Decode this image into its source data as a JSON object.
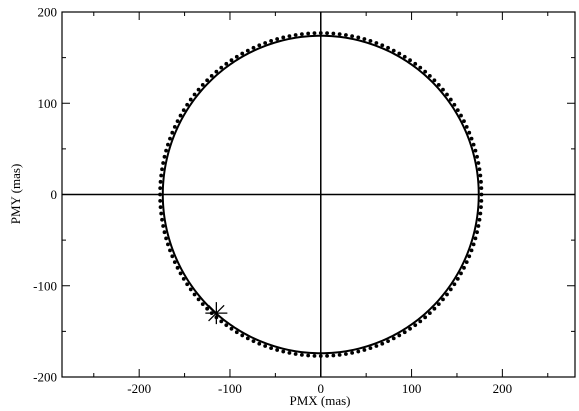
{
  "chart_data": {
    "type": "scatter",
    "xlabel": "PMX (mas)",
    "ylabel": "PMY (mas)",
    "xlim": [
      -285,
      280
    ],
    "ylim": [
      -200,
      200
    ],
    "x_ticks": [
      -200,
      -100,
      0,
      100,
      200
    ],
    "y_ticks": [
      -200,
      -100,
      0,
      100,
      200
    ],
    "x_minor_step": 50,
    "y_minor_step": 50,
    "grid": false,
    "zero_lines": true,
    "series": [
      {
        "kind": "fitted-circle-line",
        "center": [
          0,
          0
        ],
        "radius": 174,
        "color": "#000000"
      },
      {
        "kind": "observed-points",
        "center": [
          0,
          0
        ],
        "radius": 177,
        "count": 160,
        "color": "#000000"
      },
      {
        "kind": "marker",
        "symbol": "asterisk",
        "x": -115,
        "y": -130,
        "color": "#000000"
      }
    ]
  }
}
